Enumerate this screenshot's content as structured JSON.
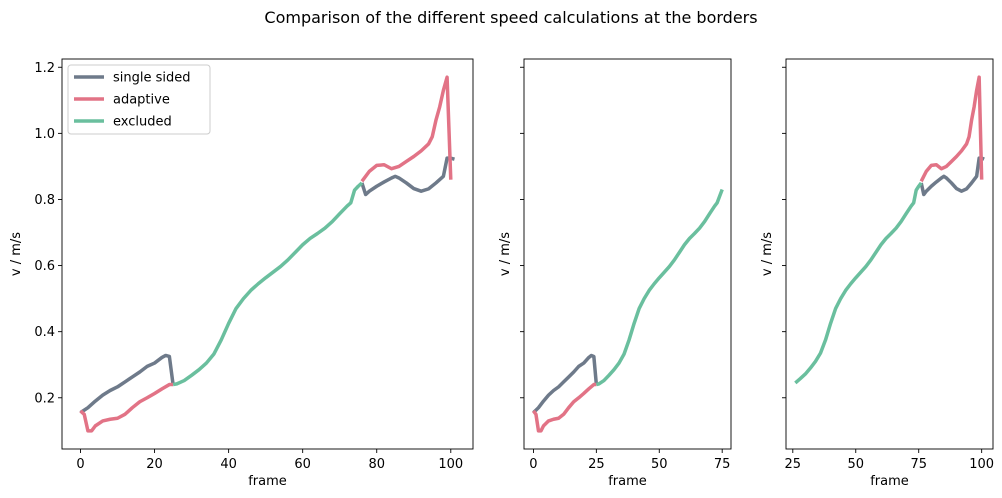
{
  "figure": {
    "title": "Comparison of the different speed calculations at the borders"
  },
  "colors": {
    "single_sided": "#6e7a8a",
    "adaptive": "#e27386",
    "excluded": "#6abf9e"
  },
  "legend": {
    "placement": "upper-left of first panel",
    "entries": [
      {
        "key": "single_sided",
        "label": "single sided"
      },
      {
        "key": "adaptive",
        "label": "adaptive"
      },
      {
        "key": "excluded",
        "label": "excluded"
      }
    ]
  },
  "chart_data": [
    {
      "type": "line",
      "xlabel": "frame",
      "ylabel": "v / m/s",
      "xlim": [
        -5,
        106
      ],
      "ylim": [
        0.045,
        1.225
      ],
      "xticks": [
        0,
        20,
        40,
        60,
        80,
        100
      ],
      "yticks": [
        0.2,
        0.4,
        0.6,
        0.8,
        1.0,
        1.2
      ],
      "ytick_labels": [
        "0.2",
        "0.4",
        "0.6",
        "0.8",
        "1.0",
        "1.2"
      ],
      "show_legend": true,
      "show_ytick_labels": true,
      "series": [
        {
          "key": "single_sided",
          "name": "single sided",
          "x": [
            0,
            2,
            4,
            6,
            8,
            10,
            12,
            14,
            16,
            18,
            20,
            22,
            23,
            24,
            25
          ],
          "y": [
            0.155,
            0.17,
            0.19,
            0.208,
            0.222,
            0.233,
            0.248,
            0.263,
            0.278,
            0.295,
            0.305,
            0.322,
            0.328,
            0.325,
            0.24
          ]
        },
        {
          "key": "adaptive",
          "name": "adaptive",
          "x": [
            0,
            1,
            2,
            3,
            4,
            6,
            8,
            10,
            12,
            14,
            16,
            18,
            20,
            22,
            24,
            25
          ],
          "y": [
            0.16,
            0.15,
            0.1,
            0.1,
            0.115,
            0.13,
            0.135,
            0.138,
            0.15,
            0.17,
            0.188,
            0.2,
            0.213,
            0.227,
            0.24,
            0.24
          ]
        },
        {
          "key": "single_sided",
          "name": "single sided",
          "x": [
            76,
            77,
            78,
            80,
            82,
            84,
            85,
            86,
            88,
            90,
            92,
            94,
            96,
            98,
            99,
            100,
            101
          ],
          "y": [
            0.85,
            0.815,
            0.825,
            0.84,
            0.853,
            0.865,
            0.87,
            0.865,
            0.85,
            0.833,
            0.825,
            0.832,
            0.85,
            0.87,
            0.925,
            0.925,
            0.922
          ]
        },
        {
          "key": "adaptive",
          "name": "adaptive",
          "x": [
            76,
            78,
            80,
            82,
            84,
            86,
            88,
            90,
            92,
            94,
            95,
            96,
            97,
            98,
            99,
            100
          ],
          "y": [
            0.855,
            0.885,
            0.903,
            0.905,
            0.893,
            0.9,
            0.915,
            0.93,
            0.947,
            0.968,
            0.99,
            1.04,
            1.08,
            1.13,
            1.17,
            0.86
          ]
        },
        {
          "key": "excluded",
          "name": "excluded",
          "x": [
            25,
            26,
            28,
            30,
            32,
            34,
            36,
            38,
            40,
            42,
            44,
            46,
            48,
            50,
            52,
            54,
            56,
            58,
            60,
            62,
            64,
            66,
            68,
            70,
            72,
            73,
            74,
            75,
            76
          ],
          "y": [
            0.24,
            0.242,
            0.252,
            0.268,
            0.285,
            0.305,
            0.332,
            0.375,
            0.425,
            0.47,
            0.5,
            0.525,
            0.545,
            0.563,
            0.58,
            0.597,
            0.617,
            0.64,
            0.663,
            0.682,
            0.697,
            0.713,
            0.733,
            0.757,
            0.78,
            0.79,
            0.828,
            0.84,
            0.85
          ]
        }
      ]
    },
    {
      "type": "line",
      "xlabel": "frame",
      "ylabel": "v / m/s",
      "xlim": [
        -3.75,
        78.5
      ],
      "ylim": [
        0.045,
        1.225
      ],
      "xticks": [
        0,
        25,
        50,
        75
      ],
      "yticks": [
        0.2,
        0.4,
        0.6,
        0.8,
        1.0,
        1.2
      ],
      "ytick_labels": [
        "",
        "",
        "",
        "",
        "",
        ""
      ],
      "show_legend": false,
      "show_ytick_labels": false,
      "series": [
        {
          "key": "single_sided",
          "name": "single sided",
          "x": [
            0,
            2,
            4,
            6,
            8,
            10,
            12,
            14,
            16,
            18,
            20,
            22,
            23,
            24,
            25
          ],
          "y": [
            0.155,
            0.17,
            0.19,
            0.208,
            0.222,
            0.233,
            0.248,
            0.263,
            0.278,
            0.295,
            0.305,
            0.322,
            0.328,
            0.325,
            0.24
          ]
        },
        {
          "key": "adaptive",
          "name": "adaptive",
          "x": [
            0,
            1,
            2,
            3,
            4,
            6,
            8,
            10,
            12,
            14,
            16,
            18,
            20,
            22,
            24,
            25
          ],
          "y": [
            0.16,
            0.15,
            0.1,
            0.1,
            0.115,
            0.13,
            0.135,
            0.138,
            0.15,
            0.17,
            0.188,
            0.2,
            0.213,
            0.227,
            0.24,
            0.24
          ]
        },
        {
          "key": "excluded",
          "name": "excluded",
          "x": [
            25,
            26,
            28,
            30,
            32,
            34,
            36,
            38,
            40,
            42,
            44,
            46,
            48,
            50,
            52,
            54,
            56,
            58,
            60,
            62,
            64,
            66,
            68,
            70,
            72,
            73,
            74,
            75
          ],
          "y": [
            0.24,
            0.242,
            0.252,
            0.268,
            0.285,
            0.305,
            0.332,
            0.375,
            0.425,
            0.47,
            0.5,
            0.525,
            0.545,
            0.563,
            0.58,
            0.597,
            0.617,
            0.64,
            0.663,
            0.682,
            0.697,
            0.713,
            0.733,
            0.757,
            0.78,
            0.79,
            0.81,
            0.83
          ]
        }
      ]
    },
    {
      "type": "line",
      "xlabel": "frame",
      "ylabel": "v / m/s",
      "xlim": [
        22.3,
        104.5
      ],
      "ylim": [
        0.045,
        1.225
      ],
      "xticks": [
        25,
        50,
        75,
        100
      ],
      "yticks": [
        0.2,
        0.4,
        0.6,
        0.8,
        1.0,
        1.2
      ],
      "ytick_labels": [
        "",
        "",
        "",
        "",
        "",
        ""
      ],
      "show_legend": false,
      "show_ytick_labels": false,
      "series": [
        {
          "key": "single_sided",
          "name": "single sided",
          "x": [
            76,
            77,
            78,
            80,
            82,
            84,
            85,
            86,
            88,
            90,
            92,
            94,
            96,
            98,
            99,
            100,
            101
          ],
          "y": [
            0.85,
            0.815,
            0.825,
            0.84,
            0.853,
            0.865,
            0.87,
            0.865,
            0.85,
            0.833,
            0.825,
            0.832,
            0.85,
            0.87,
            0.925,
            0.925,
            0.922
          ]
        },
        {
          "key": "adaptive",
          "name": "adaptive",
          "x": [
            76,
            78,
            80,
            82,
            84,
            86,
            88,
            90,
            92,
            94,
            95,
            96,
            97,
            98,
            99,
            100
          ],
          "y": [
            0.855,
            0.885,
            0.903,
            0.905,
            0.893,
            0.9,
            0.915,
            0.93,
            0.947,
            0.968,
            0.99,
            1.04,
            1.08,
            1.13,
            1.17,
            0.86
          ]
        },
        {
          "key": "excluded",
          "name": "excluded",
          "x": [
            26,
            28,
            30,
            32,
            34,
            36,
            38,
            40,
            42,
            44,
            46,
            48,
            50,
            52,
            54,
            56,
            58,
            60,
            62,
            64,
            66,
            68,
            70,
            72,
            73,
            74,
            75,
            76
          ],
          "y": [
            0.245,
            0.258,
            0.272,
            0.29,
            0.31,
            0.335,
            0.375,
            0.425,
            0.47,
            0.5,
            0.525,
            0.545,
            0.563,
            0.58,
            0.597,
            0.617,
            0.64,
            0.663,
            0.682,
            0.697,
            0.713,
            0.733,
            0.757,
            0.78,
            0.79,
            0.828,
            0.84,
            0.85
          ]
        }
      ]
    }
  ]
}
